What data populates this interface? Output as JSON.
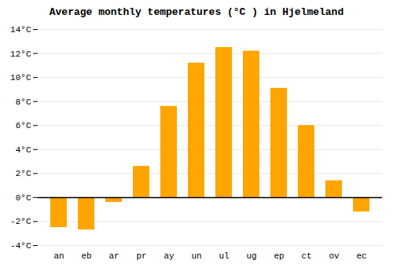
{
  "chart_data": {
    "type": "bar",
    "title": "Average monthly temperatures (°C ) in Hjelmeland",
    "categories": [
      "an",
      "eb",
      "ar",
      "pr",
      "ay",
      "un",
      "ul",
      "ug",
      "ep",
      "ct",
      "ov",
      "ec"
    ],
    "values": [
      -2.5,
      -2.7,
      -0.4,
      2.6,
      7.6,
      11.2,
      12.5,
      12.2,
      9.1,
      6.0,
      1.4,
      -1.2
    ],
    "color": "#FFA500",
    "ylim": [
      -4,
      14
    ],
    "yticks": [
      {
        "value": -4,
        "label": "-4°C"
      },
      {
        "value": -2,
        "label": "-2°C"
      },
      {
        "value": 0,
        "label": "0°C"
      },
      {
        "value": 2,
        "label": "2°C"
      },
      {
        "value": 4,
        "label": "4°C"
      },
      {
        "value": 6,
        "label": "6°C"
      },
      {
        "value": 8,
        "label": "8°C"
      },
      {
        "value": 10,
        "label": "10°C"
      },
      {
        "value": 12,
        "label": "12°C"
      },
      {
        "value": 14,
        "label": "14°C"
      }
    ],
    "grid": true
  }
}
